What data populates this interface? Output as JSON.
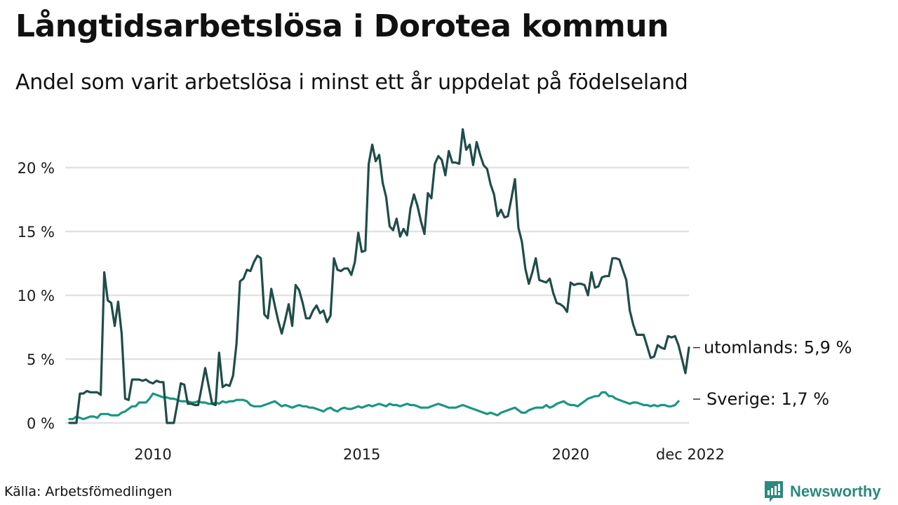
{
  "header": {
    "title": "Långtidsarbetslösa i Dorotea kommun",
    "subtitle": "Andel som varit arbetslösa i minst ett år uppdelat på födelseland"
  },
  "footer": {
    "source": "Källa: Arbetsfömedlingen",
    "brand": "Newsworthy",
    "brand_color": "#2a8a7d"
  },
  "chart_data": {
    "type": "line",
    "title": "Långtidsarbetslösa i Dorotea kommun",
    "subtitle": "Andel som varit arbetslösa i minst ett år uppdelat på födelseland",
    "xlabel": "",
    "ylabel": "",
    "x_start": "2008-01",
    "x_end": "2022-12",
    "x_frequency": "monthly",
    "x_ticks": [
      {
        "month_index": 24,
        "label": "2010"
      },
      {
        "month_index": 84,
        "label": "2015"
      },
      {
        "month_index": 144,
        "label": "2020"
      },
      {
        "month_index": 179,
        "label": "dec 2022"
      }
    ],
    "y_ticks": [
      {
        "value": 0,
        "label": "0 %"
      },
      {
        "value": 5,
        "label": "5 %"
      },
      {
        "value": 10,
        "label": "10 %"
      },
      {
        "value": 15,
        "label": "15 %"
      },
      {
        "value": 20,
        "label": "20 %"
      }
    ],
    "ylim": [
      0,
      20
    ],
    "grid": true,
    "series": [
      {
        "name": "utomlands",
        "end_label": "utomlands: 5,9 %",
        "color": "#1f4d47",
        "values": [
          0.0,
          0.0,
          0.0,
          2.3,
          2.3,
          2.5,
          2.4,
          2.4,
          2.4,
          2.2,
          11.8,
          9.6,
          9.4,
          7.6,
          9.5,
          7.0,
          1.9,
          1.8,
          3.4,
          3.4,
          3.4,
          3.3,
          3.4,
          3.2,
          3.1,
          3.3,
          3.2,
          3.2,
          0.0,
          0.0,
          0.0,
          1.5,
          3.1,
          3.0,
          1.5,
          1.5,
          1.4,
          1.4,
          2.8,
          4.3,
          2.9,
          1.5,
          1.4,
          5.5,
          2.8,
          3.0,
          2.9,
          3.7,
          6.2,
          11.1,
          11.3,
          12.0,
          11.9,
          12.6,
          13.1,
          12.9,
          8.5,
          8.2,
          10.5,
          9.2,
          8.0,
          7.0,
          8.1,
          9.3,
          7.6,
          10.8,
          10.4,
          9.4,
          8.2,
          8.2,
          8.8,
          9.2,
          8.6,
          8.8,
          7.9,
          8.4,
          12.9,
          12.0,
          11.9,
          12.1,
          12.1,
          11.6,
          12.6,
          14.9,
          13.4,
          13.5,
          20.3,
          21.8,
          20.5,
          21.0,
          18.8,
          17.7,
          15.4,
          15.1,
          16.0,
          14.6,
          15.2,
          14.7,
          16.8,
          17.9,
          17.0,
          15.8,
          14.8,
          18.0,
          17.6,
          20.3,
          20.9,
          20.6,
          19.4,
          21.3,
          20.4,
          20.4,
          20.3,
          23.0,
          21.4,
          21.8,
          20.2,
          22.0,
          21.0,
          20.2,
          19.9,
          18.7,
          17.9,
          16.2,
          16.7,
          16.1,
          16.2,
          17.6,
          19.1,
          15.3,
          14.2,
          12.1,
          10.9,
          11.8,
          12.9,
          11.2,
          11.1,
          11.0,
          11.3,
          10.2,
          9.4,
          9.3,
          9.1,
          8.7,
          11.0,
          10.8,
          10.9,
          10.9,
          10.8,
          10.0,
          11.8,
          10.6,
          10.7,
          11.4,
          11.5,
          11.5,
          12.9,
          12.9,
          12.8,
          12.0,
          11.2,
          8.8,
          7.7,
          6.9,
          6.9,
          6.9,
          6.0,
          5.1,
          5.2,
          6.1,
          5.9,
          5.8,
          6.8,
          6.7,
          6.8,
          6.1,
          5.0,
          3.9,
          5.9
        ]
      },
      {
        "name": "Sverige",
        "end_label": "Sverige: 1,7 %",
        "color": "#1a9683",
        "values": [
          0.3,
          0.3,
          0.5,
          0.4,
          0.3,
          0.4,
          0.5,
          0.5,
          0.4,
          0.7,
          0.7,
          0.7,
          0.6,
          0.6,
          0.6,
          0.8,
          0.9,
          1.1,
          1.3,
          1.3,
          1.6,
          1.6,
          1.6,
          1.9,
          2.3,
          2.2,
          2.1,
          2.0,
          2.0,
          1.9,
          1.9,
          1.8,
          1.7,
          1.7,
          1.7,
          1.6,
          1.6,
          1.7,
          1.6,
          1.6,
          1.5,
          1.5,
          1.6,
          1.5,
          1.7,
          1.6,
          1.7,
          1.7,
          1.8,
          1.8,
          1.8,
          1.7,
          1.4,
          1.3,
          1.3,
          1.3,
          1.4,
          1.5,
          1.6,
          1.7,
          1.5,
          1.3,
          1.4,
          1.3,
          1.2,
          1.3,
          1.4,
          1.3,
          1.3,
          1.2,
          1.2,
          1.1,
          1.0,
          0.9,
          1.1,
          1.2,
          1.0,
          0.9,
          1.1,
          1.2,
          1.1,
          1.1,
          1.2,
          1.3,
          1.2,
          1.3,
          1.4,
          1.3,
          1.4,
          1.5,
          1.4,
          1.3,
          1.5,
          1.4,
          1.4,
          1.3,
          1.4,
          1.5,
          1.4,
          1.4,
          1.3,
          1.2,
          1.2,
          1.2,
          1.3,
          1.4,
          1.5,
          1.4,
          1.3,
          1.2,
          1.2,
          1.2,
          1.3,
          1.4,
          1.3,
          1.2,
          1.1,
          1.0,
          0.9,
          0.8,
          0.7,
          0.8,
          0.7,
          0.6,
          0.8,
          0.9,
          1.0,
          1.1,
          1.2,
          1.0,
          0.8,
          0.8,
          1.0,
          1.1,
          1.2,
          1.2,
          1.2,
          1.4,
          1.2,
          1.3,
          1.5,
          1.6,
          1.7,
          1.5,
          1.4,
          1.4,
          1.3,
          1.5,
          1.7,
          1.9,
          2.0,
          2.1,
          2.1,
          2.4,
          2.4,
          2.1,
          2.1,
          1.9,
          1.8,
          1.7,
          1.6,
          1.5,
          1.6,
          1.6,
          1.5,
          1.4,
          1.4,
          1.3,
          1.4,
          1.3,
          1.4,
          1.4,
          1.3,
          1.3,
          1.4,
          1.7
        ]
      }
    ]
  }
}
